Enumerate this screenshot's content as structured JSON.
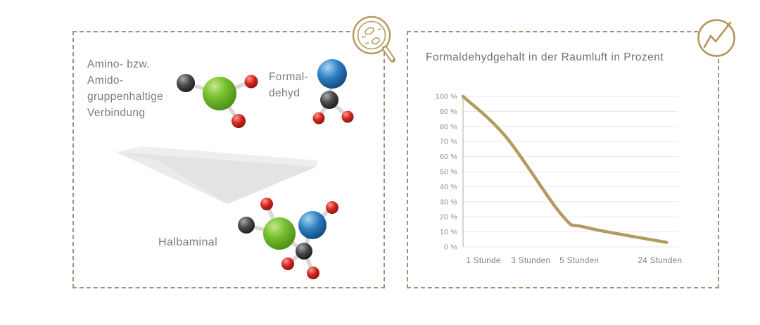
{
  "page": {
    "background": "#ffffff",
    "panel_border_color": "#9a9376",
    "accent_gold": "#b2965a",
    "text_color": "#7a7a7a",
    "arrow_color": "#e3e3e3"
  },
  "left_panel": {
    "reactant_lines": [
      "Amino- bzw.",
      "Amido-",
      "gruppenhaltige",
      "Verbindung"
    ],
    "formaldehyde_lines": [
      "Formal-",
      "dehyd"
    ],
    "product_label": "Halbaminal",
    "badge_icon": "magnifier-with-molecules-icon",
    "molecule_colors": {
      "green": "#6fbe2e",
      "blue": "#2e7fc2",
      "dark_gray": "#3d3d3d",
      "red": "#d42a24",
      "stick": "#d8d8d8"
    },
    "molecules": [
      "amino-amido-compound",
      "formaldehyde",
      "halbaminal-product"
    ]
  },
  "right_panel": {
    "badge_icon": "trend-line-chart-icon"
  },
  "chart_data": {
    "type": "line",
    "title": "Formaldehydgehalt in der Raumluft in Prozent",
    "xlabel": "",
    "ylabel": "",
    "ylim": [
      0,
      100
    ],
    "grid": true,
    "legend": "none",
    "line_color": "#b59a60",
    "y_ticks": [
      100,
      90,
      80,
      70,
      60,
      50,
      40,
      30,
      20,
      10,
      0
    ],
    "y_tick_suffix": " %",
    "x_tick_labels": [
      "1 Stunde",
      "3 Stunden",
      "5 Stunden",
      "24 Stunden"
    ],
    "x_tick_positions": [
      0.095,
      0.315,
      0.54,
      0.915
    ],
    "approx_values_at_ticks": [
      88,
      51,
      16,
      3
    ],
    "series": [
      {
        "name": "Formaldehydgehalt",
        "points": [
          {
            "x": 0.0,
            "value": 100
          },
          {
            "x": 0.2,
            "value": 73
          },
          {
            "x": 0.46,
            "value": 21
          },
          {
            "x": 0.57,
            "value": 13
          },
          {
            "x": 0.945,
            "value": 3
          }
        ]
      }
    ]
  }
}
